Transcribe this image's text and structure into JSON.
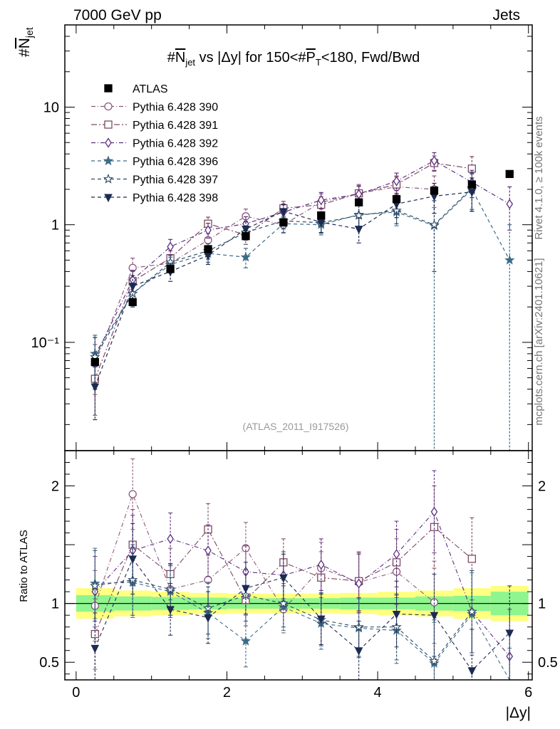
{
  "header": {
    "left": "7000 GeV pp",
    "right": "Jets"
  },
  "side_labels": {
    "rivet": "Rivet 4.1.0, ≥ 100k events",
    "mcplots": "mcplots.cern.ch [arXiv:2401.10621]"
  },
  "chart_data": {
    "type": "scatter",
    "title": "#N_jet vs |Δy| for 150<#P_T<180, Fwd/Bwd",
    "title_parts": {
      "pre": "#",
      "n": "N",
      "sub": "jet",
      "mid": " vs |Δy| for 150<#",
      "p": "P",
      "psub": "T",
      "post": "<180, Fwd/Bwd"
    },
    "analysis_id": "(ATLAS_2011_I917526)",
    "ylabel_main": {
      "pre": "#",
      "n": "N",
      "sub": "jet"
    },
    "ylabel_ratio": "Ratio to ATLAS",
    "xlabel": "|Δy|",
    "xlim": [
      -0.15,
      6.05
    ],
    "ylim_main_log": [
      0.012,
      50
    ],
    "ylim_ratio": [
      0.35,
      2.3
    ],
    "x_ticks": [
      0,
      2,
      4,
      6
    ],
    "y_ticks_main": [
      {
        "v": 0.1,
        "label": "10⁻¹"
      },
      {
        "v": 1,
        "label": "1"
      },
      {
        "v": 10,
        "label": "10"
      }
    ],
    "y_ticks_ratio": [
      {
        "v": 0.5,
        "label": "0.5"
      },
      {
        "v": 1,
        "label": "1"
      },
      {
        "v": 2,
        "label": "2"
      }
    ],
    "x": [
      0.25,
      0.75,
      1.25,
      1.75,
      2.25,
      2.75,
      3.25,
      3.75,
      4.25,
      4.75,
      5.25,
      5.75
    ],
    "bin_edges": [
      0,
      0.5,
      1,
      1.5,
      2,
      2.5,
      3,
      3.5,
      4,
      4.5,
      5,
      5.5,
      6
    ],
    "band_green": [
      0.07,
      0.06,
      0.055,
      0.05,
      0.045,
      0.045,
      0.045,
      0.05,
      0.05,
      0.06,
      0.065,
      0.1
    ],
    "band_yellow": [
      0.13,
      0.11,
      0.1,
      0.09,
      0.085,
      0.085,
      0.085,
      0.09,
      0.1,
      0.11,
      0.13,
      0.15
    ],
    "data": {
      "name": "ATLAS",
      "values": [
        0.068,
        0.22,
        0.42,
        0.62,
        0.8,
        1.05,
        1.2,
        1.55,
        1.65,
        1.95,
        2.2,
        2.7
      ]
    },
    "series": [
      {
        "name": "Pythia 6.428 390",
        "color": "#8c5a7d",
        "marker": "circle-open",
        "dash": "6,3,1,3",
        "values": [
          0.066,
          0.43,
          0.47,
          0.74,
          1.18,
          1.0,
          1.55,
          1.85,
          2.1,
          2.0,
          null,
          null
        ],
        "errors": [
          0.03,
          0.09,
          0.08,
          0.1,
          0.18,
          0.15,
          0.28,
          0.35,
          0.45,
          0.6,
          null,
          null
        ]
      },
      {
        "name": "Pythia 6.428 391",
        "color": "#7d4a63",
        "marker": "square-open",
        "dash": "8,3,2,3",
        "values": [
          0.049,
          0.33,
          0.52,
          1.02,
          0.82,
          1.38,
          1.48,
          1.85,
          2.2,
          3.35,
          3.0,
          null
        ],
        "errors": [
          0.025,
          0.07,
          0.08,
          0.14,
          0.14,
          0.2,
          0.25,
          0.3,
          0.4,
          0.5,
          0.8,
          null
        ]
      },
      {
        "name": "Pythia 6.428 392",
        "color": "#5c2f82",
        "marker": "diamond-open",
        "dash": "6,3,1,3",
        "values": [
          0.075,
          0.34,
          0.65,
          0.9,
          1.02,
          1.28,
          1.62,
          1.82,
          2.35,
          3.5,
          2.3,
          1.5
        ],
        "errors": [
          0.035,
          0.07,
          0.1,
          0.13,
          0.15,
          0.2,
          0.26,
          0.3,
          0.4,
          0.6,
          0.6,
          0.6
        ]
      },
      {
        "name": "Pythia 6.428 396",
        "color": "#3d6b87",
        "marker": "star",
        "dash": "5,4",
        "values": [
          0.08,
          0.26,
          0.46,
          0.57,
          0.53,
          1.02,
          1.0,
          1.22,
          1.28,
          0.98,
          2.0,
          0.5
        ],
        "errors": [
          0.035,
          0.06,
          0.07,
          0.09,
          0.1,
          0.16,
          0.18,
          0.25,
          0.3,
          0.98,
          0.7,
          0.5
        ]
      },
      {
        "name": "Pythia 6.428 397",
        "color": "#2e4a66",
        "marker": "star-open",
        "dash": "5,4",
        "values": [
          0.075,
          0.26,
          0.48,
          0.6,
          0.86,
          1.08,
          1.04,
          1.2,
          1.32,
          1.0,
          2.05,
          null
        ],
        "errors": [
          0.035,
          0.06,
          0.07,
          0.09,
          0.12,
          0.16,
          0.18,
          0.25,
          0.3,
          0.6,
          0.7,
          null
        ]
      },
      {
        "name": "Pythia 6.428 398",
        "color": "#1c2b52",
        "marker": "triangle-down",
        "dash": "5,4",
        "values": [
          0.042,
          0.3,
          0.4,
          0.55,
          0.92,
          1.3,
          1.05,
          0.92,
          1.5,
          1.75,
          1.9,
          null
        ],
        "errors": [
          0.02,
          0.07,
          0.07,
          0.09,
          0.14,
          0.2,
          0.2,
          0.22,
          0.35,
          0.5,
          0.6,
          null
        ]
      }
    ],
    "ratios": [
      [
        0.98,
        1.93,
        1.12,
        1.2,
        1.47,
        0.95,
        1.3,
        1.18,
        1.27,
        1.01,
        null,
        null
      ],
      [
        0.74,
        1.5,
        1.25,
        1.63,
        1.03,
        1.35,
        1.22,
        1.19,
        1.35,
        1.65,
        1.38,
        null
      ],
      [
        1.1,
        1.45,
        1.55,
        1.45,
        1.27,
        1.24,
        1.33,
        1.17,
        1.42,
        1.78,
        0.93,
        0.55
      ],
      [
        1.17,
        1.18,
        1.1,
        0.92,
        0.68,
        0.97,
        0.83,
        0.79,
        0.77,
        0.49,
        0.91,
        0.22
      ],
      [
        1.15,
        1.2,
        1.12,
        0.96,
        1.07,
        1.0,
        0.86,
        0.8,
        0.8,
        0.51,
        0.93,
        null
      ],
      [
        0.62,
        1.38,
        0.95,
        0.88,
        1.13,
        1.22,
        0.87,
        0.6,
        0.91,
        0.9,
        0.43,
        0.75
      ]
    ],
    "ratio_errors": [
      0.3,
      0.3,
      0.22,
      0.22,
      0.22,
      0.2,
      0.22,
      0.25,
      0.28,
      0.35,
      0.35,
      0.4
    ],
    "ratio_low_clip": [
      false,
      false,
      false,
      false,
      false,
      false,
      false,
      false,
      false,
      false,
      false,
      true
    ]
  },
  "colors": {
    "green_band": "#8ff58f",
    "yellow_band": "#ffff80",
    "data_marker": "#000000"
  }
}
